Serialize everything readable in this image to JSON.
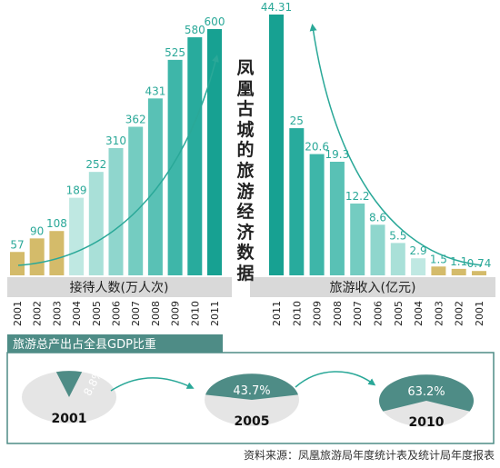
{
  "side_title": "凤凰古城的旅游经济数据",
  "source": "资料来源：凤凰旅游局年度统计表及统计局年度报表",
  "chart_data": [
    {
      "type": "bar",
      "xlabel": "接待人数(万人次)",
      "categories": [
        "2001",
        "2002",
        "2003",
        "2004",
        "2005",
        "2006",
        "2007",
        "2008",
        "2009",
        "2010",
        "2011"
      ],
      "values": [
        57,
        90,
        108,
        189,
        252,
        310,
        362,
        431,
        525,
        580,
        600
      ],
      "value_labels": [
        "57",
        "90",
        "108",
        "189",
        "252",
        "310",
        "362",
        "431",
        "525",
        "580",
        "600"
      ],
      "ylim": [
        0,
        600
      ],
      "colors": [
        "#d4bb6a",
        "#d4bb6a",
        "#d4bb6a",
        "#bfe8e2",
        "#a9e0d8",
        "#8fd6cd",
        "#74ccc1",
        "#59c1b5",
        "#3eb6a9",
        "#28ab9d",
        "#17a192"
      ],
      "trend": "up"
    },
    {
      "type": "bar",
      "xlabel": "旅游收入(亿元)",
      "categories": [
        "2011",
        "2010",
        "2009",
        "2008",
        "2007",
        "2006",
        "2005",
        "2004",
        "2003",
        "2002",
        "2001"
      ],
      "values": [
        44.31,
        25,
        20.6,
        19.3,
        12.2,
        8.6,
        5.5,
        2.9,
        1.5,
        1.1,
        0.74
      ],
      "value_labels": [
        "44.31",
        "25",
        "20.6",
        "19.3",
        "12.2",
        "8.6",
        "5.5",
        "2.9",
        "1.5",
        "1.1",
        "0.74"
      ],
      "ylim": [
        0,
        44.31
      ],
      "colors": [
        "#17a192",
        "#28ab9d",
        "#3eb6a9",
        "#59c1b5",
        "#74ccc1",
        "#8fd6cd",
        "#a9e0d8",
        "#bfe8e2",
        "#d4bb6a",
        "#d4bb6a",
        "#d4bb6a"
      ],
      "trend": "up-left"
    },
    {
      "type": "pie",
      "title": "旅游总产出占全县GDP比重",
      "items": [
        {
          "year": "2001",
          "percent": 8.8,
          "label": "8.8%"
        },
        {
          "year": "2005",
          "percent": 43.7,
          "label": "43.7%"
        },
        {
          "year": "2010",
          "percent": 63.2,
          "label": "63.2%"
        }
      ],
      "colors": {
        "share": "#4e8c86",
        "rest": "#e5e5e5"
      }
    }
  ]
}
